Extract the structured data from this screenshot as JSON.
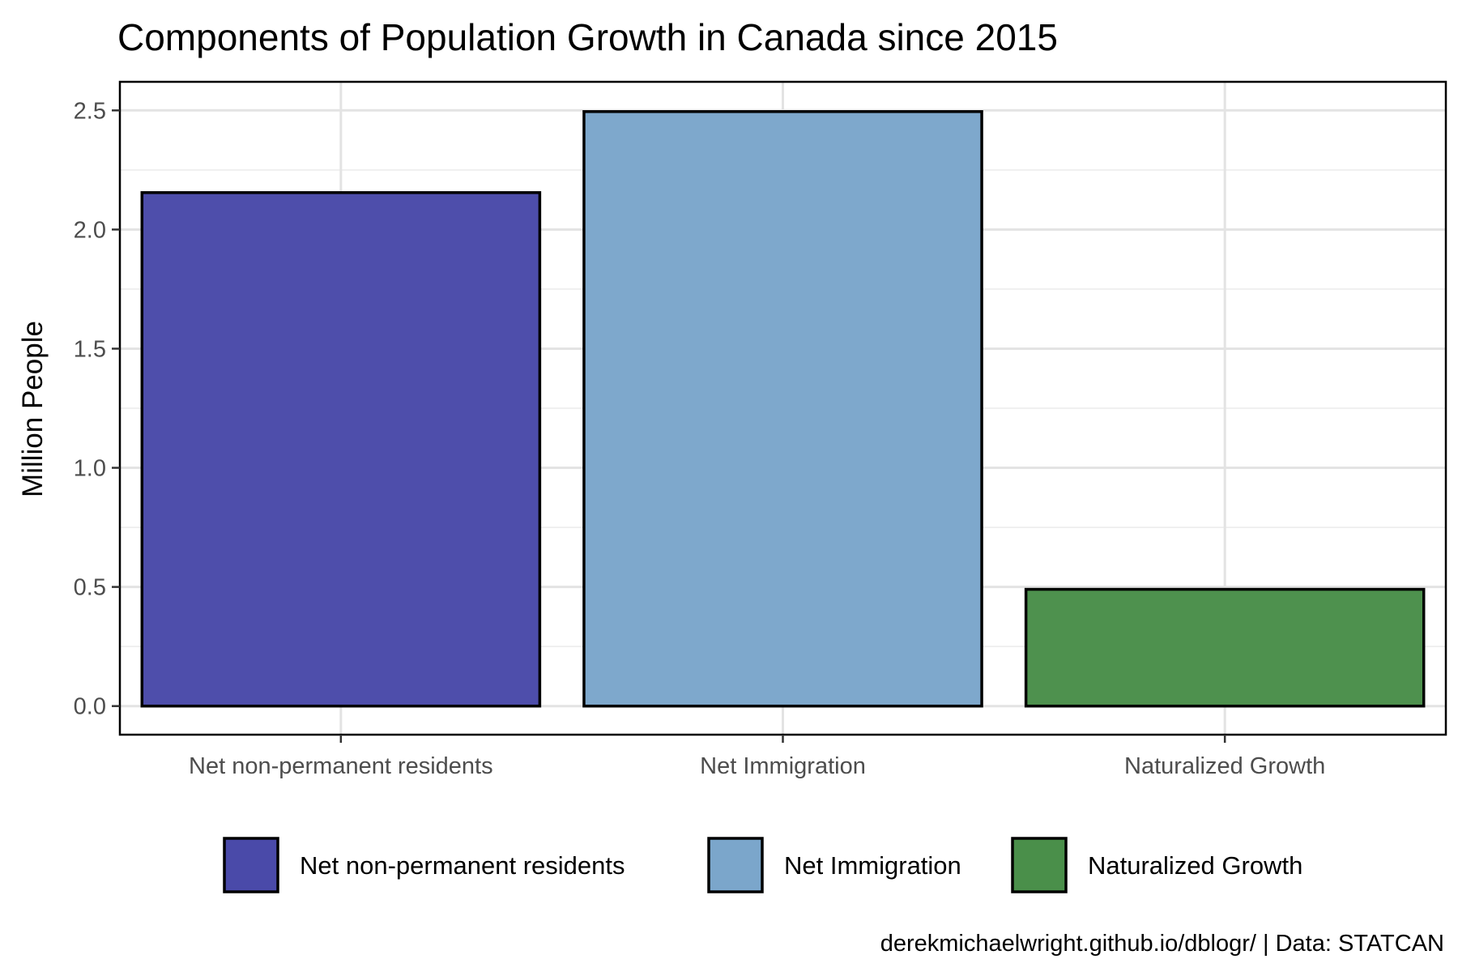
{
  "chart_data": {
    "type": "bar",
    "title": "Components of Population Growth in Canada since 2015",
    "xlabel": "",
    "ylabel": "Million People",
    "categories": [
      "Net non-permanent residents",
      "Net Immigration",
      "Naturalized Growth"
    ],
    "values": [
      2.155,
      2.495,
      0.49
    ],
    "ylim": [
      -0.12,
      2.62
    ],
    "yticks": [
      0.0,
      0.5,
      1.0,
      1.5,
      2.0,
      2.5
    ],
    "ytick_labels": [
      "0.0",
      "0.5",
      "1.0",
      "1.5",
      "2.0",
      "2.5"
    ],
    "colors": [
      "#4a4aa9",
      "#7ba6cb",
      "#4a8f4a"
    ],
    "grid": true,
    "legend": {
      "position": "bottom",
      "entries": [
        "Net non-permanent residents",
        "Net Immigration",
        "Naturalized Growth"
      ]
    },
    "caption": "derekmichaelwright.github.io/dblogr/ | Data: STATCAN"
  }
}
